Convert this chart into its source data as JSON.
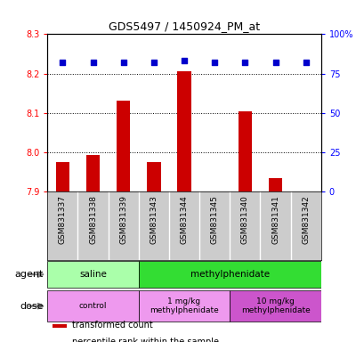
{
  "title": "GDS5497 / 1450924_PM_at",
  "samples": [
    "GSM831337",
    "GSM831338",
    "GSM831339",
    "GSM831343",
    "GSM831344",
    "GSM831345",
    "GSM831340",
    "GSM831341",
    "GSM831342"
  ],
  "bar_values": [
    7.975,
    7.993,
    8.13,
    7.975,
    8.205,
    7.901,
    8.103,
    7.935,
    7.901
  ],
  "percentile_values": [
    82,
    82,
    82,
    82,
    83,
    82,
    82,
    82,
    82
  ],
  "ylim_left": [
    7.9,
    8.3
  ],
  "ylim_right": [
    0,
    100
  ],
  "yticks_left": [
    7.9,
    8.0,
    8.1,
    8.2,
    8.3
  ],
  "yticks_right": [
    0,
    25,
    50,
    75,
    100
  ],
  "ytick_labels_right": [
    "0",
    "25",
    "50",
    "75",
    "100%"
  ],
  "bar_color": "#cc0000",
  "percentile_color": "#0000cc",
  "bar_base": 7.9,
  "agent_groups": [
    {
      "label": "saline",
      "start": 0,
      "end": 3,
      "color": "#aaffaa"
    },
    {
      "label": "methylphenidate",
      "start": 3,
      "end": 9,
      "color": "#33dd33"
    }
  ],
  "dose_groups": [
    {
      "label": "control",
      "start": 0,
      "end": 3,
      "color": "#ee99ee"
    },
    {
      "label": "1 mg/kg\nmethylphenidate",
      "start": 3,
      "end": 6,
      "color": "#ee99ee"
    },
    {
      "label": "10 mg/kg\nmethylphenidate",
      "start": 6,
      "end": 9,
      "color": "#cc55cc"
    }
  ],
  "agent_label": "agent",
  "dose_label": "dose",
  "legend_bar_label": "transformed count",
  "legend_pct_label": "percentile rank within the sample",
  "sample_bg_color": "#cccccc",
  "grid_yticks": [
    8.0,
    8.1,
    8.2
  ]
}
